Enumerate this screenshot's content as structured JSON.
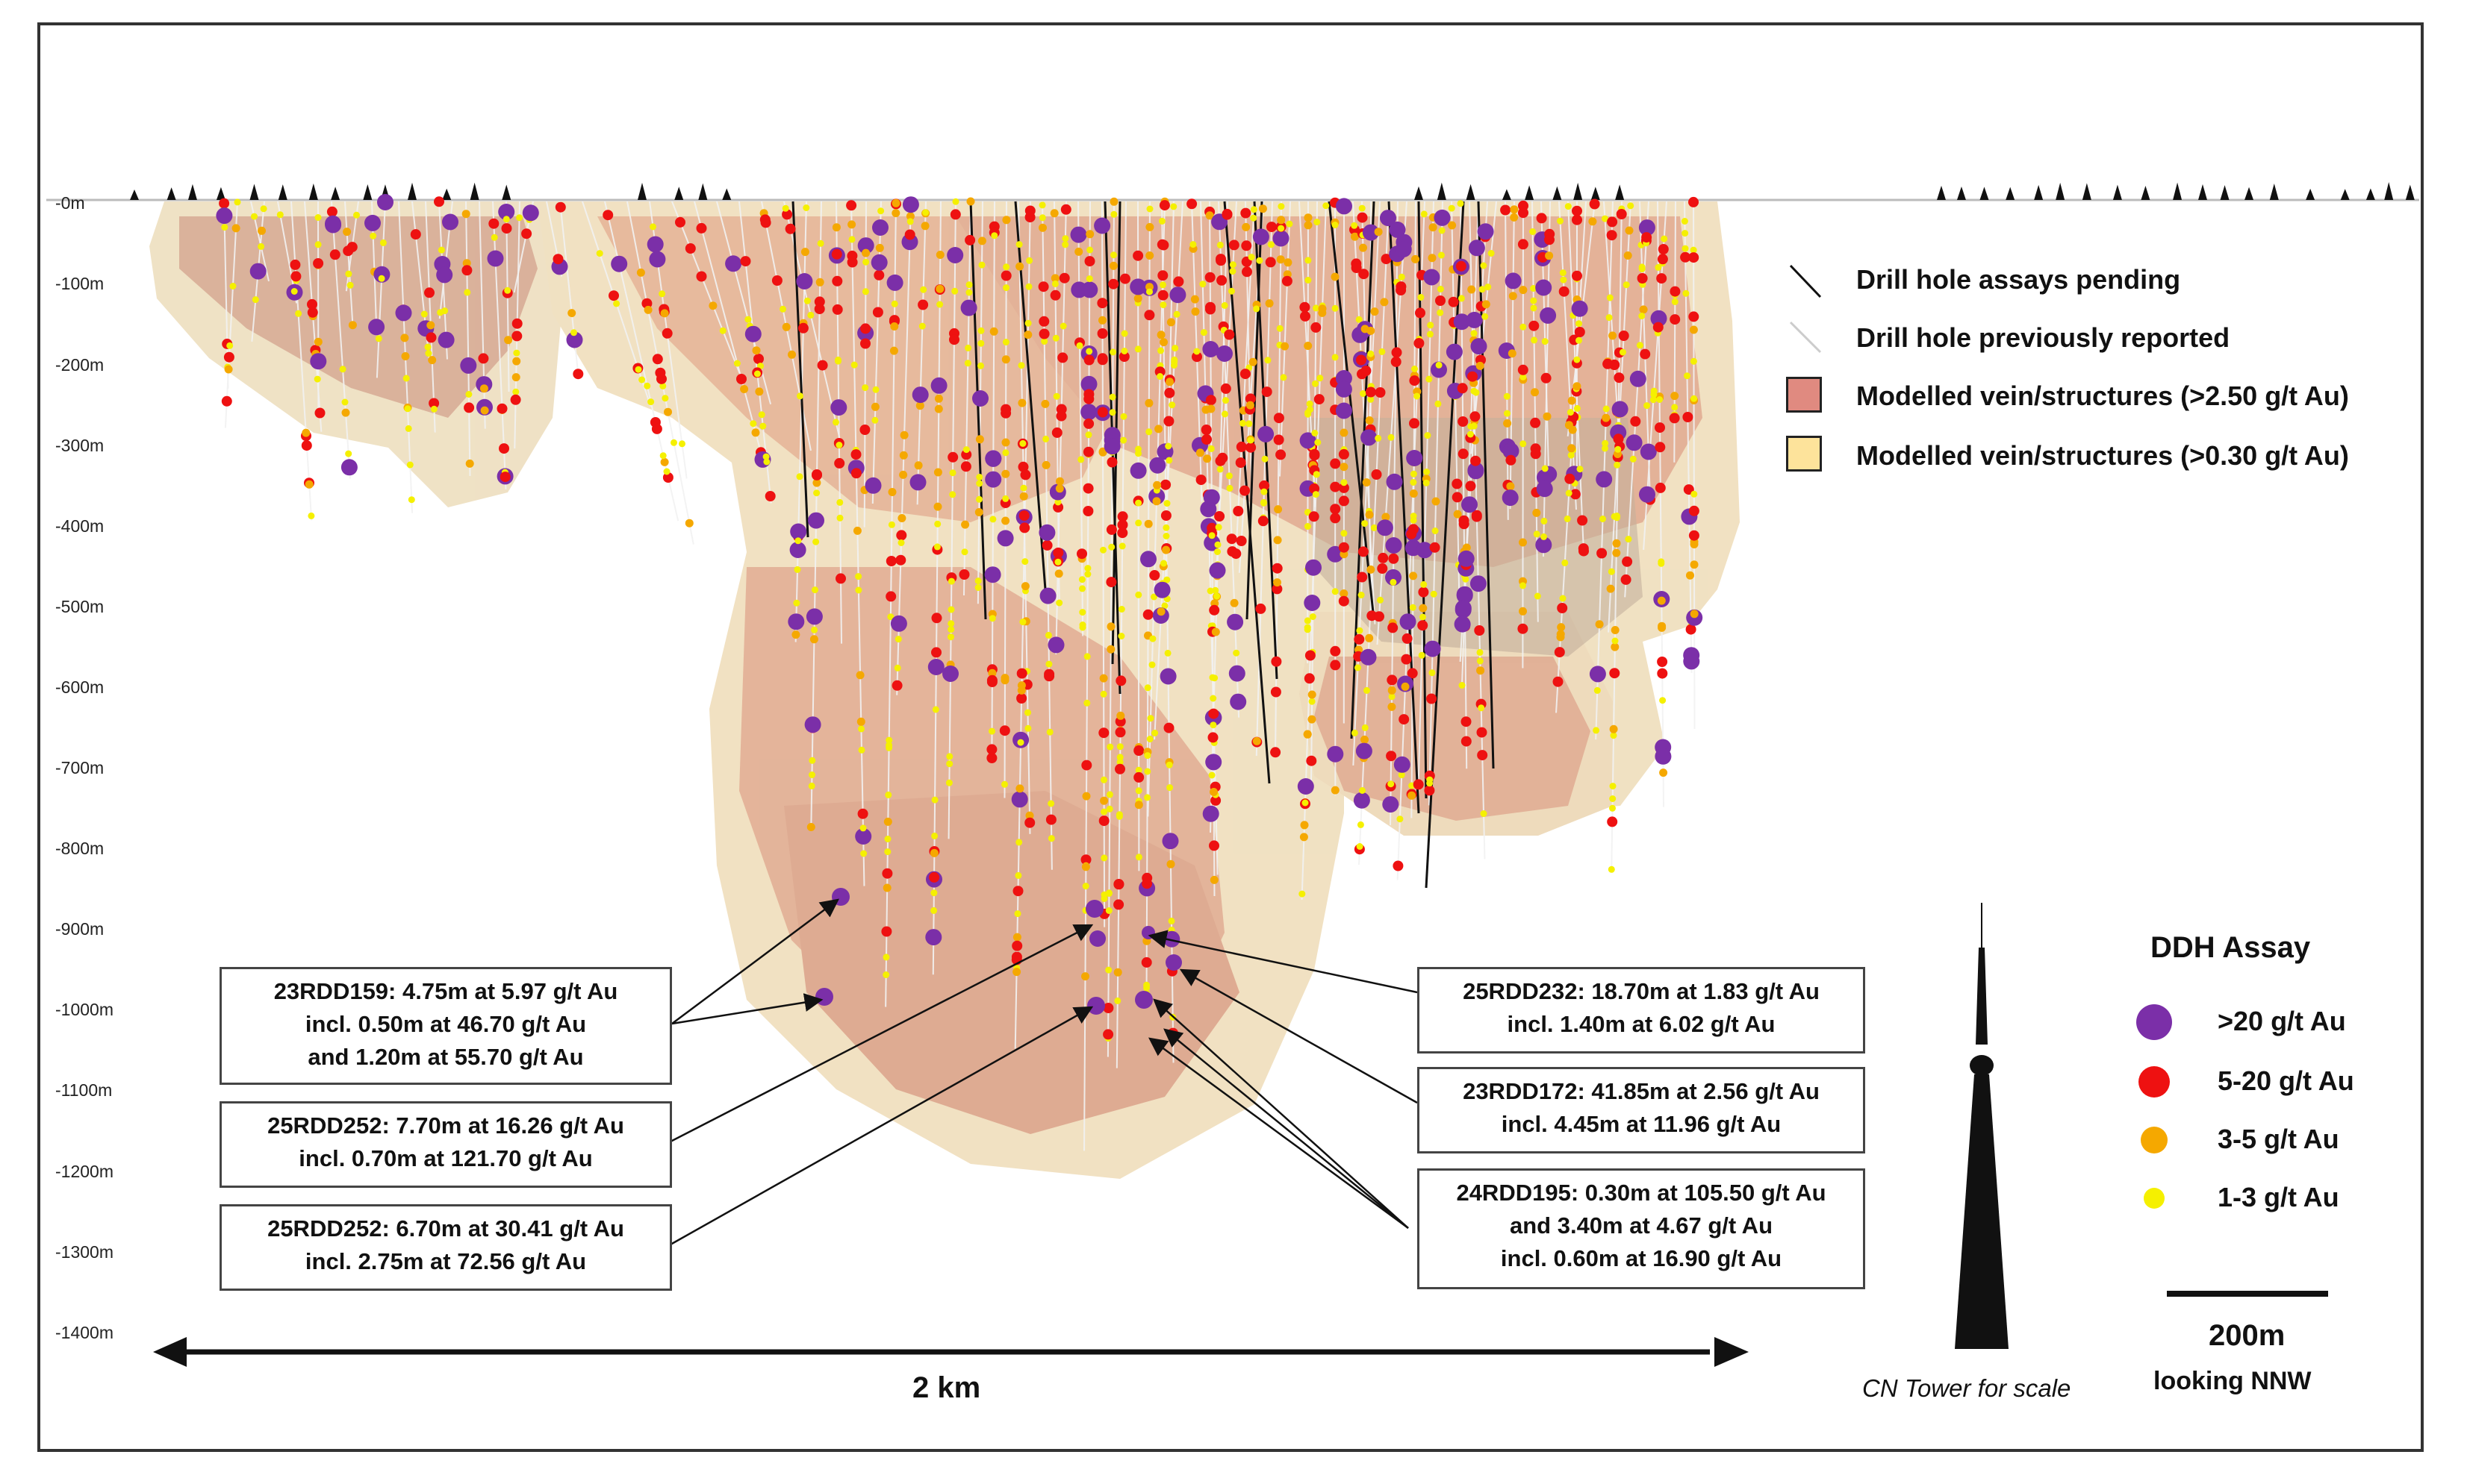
{
  "depth_labels": [
    "-0m",
    "-100m",
    "-200m",
    "-300m",
    "-400m",
    "-500m",
    "-600m",
    "-700m",
    "-800m",
    "-900m",
    "-1000m",
    "-1100m",
    "-1200m",
    "-1300m",
    "-1400m"
  ],
  "legend": {
    "pending": "Drill hole assays pending",
    "previous": "Drill hole previously reported",
    "high_grade": "Modelled vein/structures (>2.50 g/t Au)",
    "low_grade": "Modelled vein/structures (>0.30 g/t Au)",
    "high_grade_color": "#e08a80",
    "low_grade_color": "#fde39b"
  },
  "ddh_assay": {
    "title": "DDH Assay",
    "items": [
      {
        "label": ">20 g/t Au",
        "color": "#7b2fa8"
      },
      {
        "label": "5-20 g/t Au",
        "color": "#ee1111"
      },
      {
        "label": "3-5 g/t Au",
        "color": "#f5a800"
      },
      {
        "label": "1-3 g/t Au",
        "color": "#f5f000"
      }
    ]
  },
  "callouts": [
    {
      "lines": [
        "23RDD159: 4.75m at 5.97 g/t Au",
        "incl. 0.50m at 46.70 g/t Au",
        "and 1.20m at 55.70 g/t Au"
      ]
    },
    {
      "lines": [
        "25RDD252: 7.70m at 16.26 g/t Au",
        "incl. 0.70m at 121.70 g/t Au"
      ]
    },
    {
      "lines": [
        "25RDD252: 6.70m at 30.41 g/t Au",
        "incl. 2.75m at 72.56 g/t Au"
      ]
    },
    {
      "lines": [
        "25RDD232: 18.70m at 1.83 g/t Au",
        "incl. 1.40m at 6.02 g/t Au"
      ]
    },
    {
      "lines": [
        "23RDD172: 41.85m at 2.56 g/t Au",
        "incl. 4.45m at 11.96 g/t Au"
      ]
    },
    {
      "lines": [
        "24RDD195: 0.30m at 105.50 g/t Au",
        "and 3.40m at 4.67 g/t Au",
        "incl. 0.60m at 16.90 g/t Au"
      ]
    }
  ],
  "scale": {
    "distance": "2 km",
    "tower": "CN Tower for scale",
    "bar": "200m",
    "view": "looking NNW"
  }
}
